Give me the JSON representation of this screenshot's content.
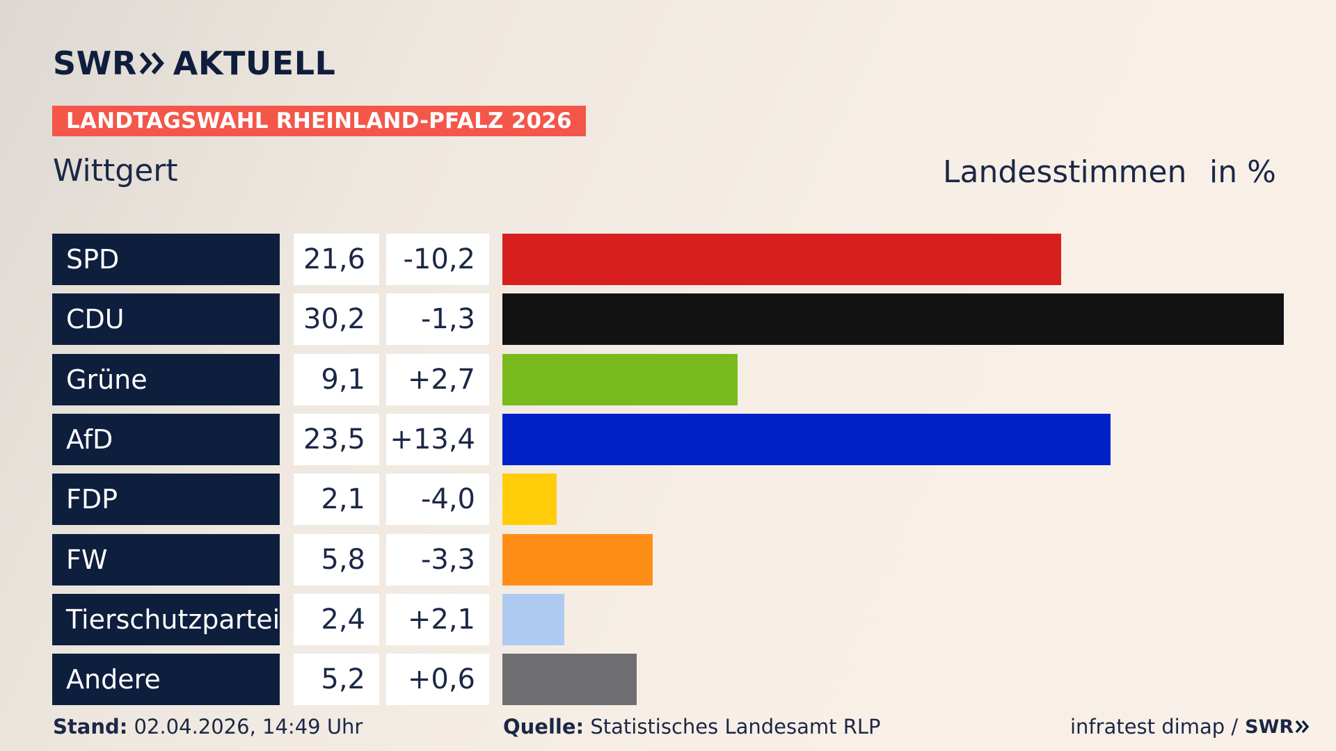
{
  "brand": {
    "logo_left": "SWR",
    "logo_right": "AKTUELL"
  },
  "banner": "LANDTAGSWAHL RHEINLAND-PFALZ 2026",
  "place": "Wittgert",
  "headers": {
    "vote_type": "Landesstimmen",
    "unit": "in %"
  },
  "chart_data": {
    "type": "bar",
    "orientation": "horizontal",
    "categories": [
      "SPD",
      "CDU",
      "Grüne",
      "AfD",
      "FDP",
      "FW",
      "Tierschutzpartei",
      "Andere"
    ],
    "values": [
      21.6,
      30.2,
      9.1,
      23.5,
      2.1,
      5.8,
      2.4,
      5.2
    ],
    "value_labels": [
      "21,6",
      "30,2",
      "9,1",
      "23,5",
      "2,1",
      "5,8",
      "2,4",
      "5,2"
    ],
    "change_labels": [
      "-10,2",
      "-1,3",
      "+2,7",
      "+13,4",
      "-4,0",
      "-3,3",
      "+2,1",
      "+0,6"
    ],
    "changes": [
      -10.2,
      -1.3,
      2.7,
      13.4,
      -4.0,
      -3.3,
      2.1,
      0.6
    ],
    "colors": [
      "#d81f1f",
      "#121212",
      "#79bb1c",
      "#0020c8",
      "#ffcd0a",
      "#ff8e18",
      "#aecaf0",
      "#6e6e70"
    ],
    "xlim": [
      0,
      30.2
    ]
  },
  "footer": {
    "stand_label": "Stand:",
    "stand_value": " 02.04.2026, 14:49 Uhr",
    "source_label": "Quelle:",
    "source_value": " Statistisches Landesamt RLP",
    "credit": "infratest dimap /",
    "credit_logo": "SWR"
  }
}
